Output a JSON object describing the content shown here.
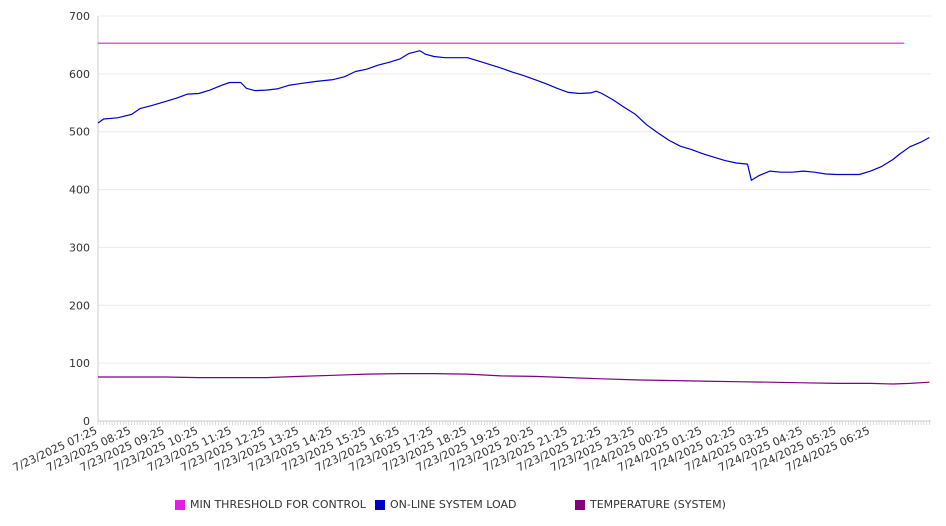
{
  "chart_data": {
    "type": "line",
    "ylim": [
      0,
      700
    ],
    "yticks": [
      0,
      100,
      200,
      300,
      400,
      500,
      600,
      700
    ],
    "grid": true,
    "legend_position": "bottom",
    "x_start": "7/23/2025 07:25",
    "x_end": "7/24/2025 07:25",
    "x_tick_labels": [
      "7/23/2025 07:25",
      "7/23/2025 08:25",
      "7/23/2025 09:25",
      "7/23/2025 10:25",
      "7/23/2025 11:25",
      "7/23/2025 12:25",
      "7/23/2025 13:25",
      "7/23/2025 14:25",
      "7/23/2025 15:25",
      "7/23/2025 16:25",
      "7/23/2025 17:25",
      "7/23/2025 18:25",
      "7/23/2025 19:25",
      "7/23/2025 20:25",
      "7/23/2025 21:25",
      "7/23/2025 22:25",
      "7/23/2025 23:25",
      "7/24/2025 00:25",
      "7/24/2025 01:25",
      "7/24/2025 02:25",
      "7/24/2025 03:25",
      "7/24/2025 04:25",
      "7/24/2025 05:25",
      "7/24/2025 06:25"
    ],
    "series": [
      {
        "name": "MIN THRESHOLD FOR CONTROL",
        "color": "#e41ee4",
        "points": [
          [
            "7/23/2025 07:25",
            653
          ],
          [
            "7/24/2025 07:25",
            653
          ]
        ]
      },
      {
        "name": "ON-LINE SYSTEM LOAD",
        "color": "#0000cc",
        "points": [
          [
            "7/23/2025 07:25",
            515
          ],
          [
            "7/23/2025 07:35",
            522
          ],
          [
            "7/23/2025 08:00",
            524
          ],
          [
            "7/23/2025 08:25",
            530
          ],
          [
            "7/23/2025 08:40",
            540
          ],
          [
            "7/23/2025 09:00",
            545
          ],
          [
            "7/23/2025 09:25",
            552
          ],
          [
            "7/23/2025 09:45",
            558
          ],
          [
            "7/23/2025 10:05",
            565
          ],
          [
            "7/23/2025 10:25",
            566
          ],
          [
            "7/23/2025 10:45",
            572
          ],
          [
            "7/23/2025 11:05",
            580
          ],
          [
            "7/23/2025 11:20",
            585
          ],
          [
            "7/23/2025 11:40",
            585
          ],
          [
            "7/23/2025 11:50",
            575
          ],
          [
            "7/23/2025 12:05",
            571
          ],
          [
            "7/23/2025 12:25",
            572
          ],
          [
            "7/23/2025 12:45",
            574
          ],
          [
            "7/23/2025 13:05",
            580
          ],
          [
            "7/23/2025 13:25",
            583
          ],
          [
            "7/23/2025 13:55",
            587
          ],
          [
            "7/23/2025 14:25",
            590
          ],
          [
            "7/23/2025 14:45",
            595
          ],
          [
            "7/23/2025 15:05",
            604
          ],
          [
            "7/23/2025 15:25",
            608
          ],
          [
            "7/23/2025 15:45",
            615
          ],
          [
            "7/23/2025 16:05",
            620
          ],
          [
            "7/23/2025 16:25",
            626
          ],
          [
            "7/23/2025 16:40",
            635
          ],
          [
            "7/23/2025 17:00",
            640
          ],
          [
            "7/23/2025 17:10",
            634
          ],
          [
            "7/23/2025 17:25",
            630
          ],
          [
            "7/23/2025 17:45",
            628
          ],
          [
            "7/23/2025 18:25",
            628
          ],
          [
            "7/23/2025 18:45",
            622
          ],
          [
            "7/23/2025 19:05",
            616
          ],
          [
            "7/23/2025 19:25",
            610
          ],
          [
            "7/23/2025 19:45",
            603
          ],
          [
            "7/23/2025 20:05",
            597
          ],
          [
            "7/23/2025 20:25",
            590
          ],
          [
            "7/23/2025 20:45",
            583
          ],
          [
            "7/23/2025 21:05",
            575
          ],
          [
            "7/23/2025 21:25",
            568
          ],
          [
            "7/23/2025 21:45",
            566
          ],
          [
            "7/23/2025 22:05",
            567
          ],
          [
            "7/23/2025 22:15",
            570
          ],
          [
            "7/23/2025 22:25",
            566
          ],
          [
            "7/23/2025 22:45",
            555
          ],
          [
            "7/23/2025 23:05",
            542
          ],
          [
            "7/23/2025 23:25",
            530
          ],
          [
            "7/23/2025 23:45",
            512
          ],
          [
            "7/24/2025 00:05",
            498
          ],
          [
            "7/24/2025 00:25",
            485
          ],
          [
            "7/24/2025 00:45",
            475
          ],
          [
            "7/24/2025 01:05",
            469
          ],
          [
            "7/24/2025 01:25",
            462
          ],
          [
            "7/24/2025 01:45",
            456
          ],
          [
            "7/24/2025 02:05",
            450
          ],
          [
            "7/24/2025 02:25",
            446
          ],
          [
            "7/24/2025 02:45",
            444
          ],
          [
            "7/24/2025 02:52",
            416
          ],
          [
            "7/24/2025 03:05",
            424
          ],
          [
            "7/24/2025 03:25",
            432
          ],
          [
            "7/24/2025 03:45",
            430
          ],
          [
            "7/24/2025 04:05",
            430
          ],
          [
            "7/24/2025 04:25",
            432
          ],
          [
            "7/24/2025 04:45",
            430
          ],
          [
            "7/24/2025 05:05",
            427
          ],
          [
            "7/24/2025 05:25",
            426
          ],
          [
            "7/24/2025 05:45",
            426
          ],
          [
            "7/24/2025 06:05",
            426
          ],
          [
            "7/24/2025 06:25",
            432
          ],
          [
            "7/24/2025 06:45",
            440
          ],
          [
            "7/24/2025 07:05",
            452
          ],
          [
            "7/24/2025 07:15",
            460
          ],
          [
            "7/24/2025 07:35",
            474
          ],
          [
            "7/24/2025 07:55",
            482
          ],
          [
            "7/24/2025 08:10",
            490
          ]
        ]
      },
      {
        "name": "TEMPERATURE (SYSTEM)",
        "color": "#800080",
        "points": [
          [
            "7/23/2025 07:25",
            76
          ],
          [
            "7/23/2025 09:25",
            76
          ],
          [
            "7/23/2025 10:25",
            75
          ],
          [
            "7/23/2025 12:25",
            75
          ],
          [
            "7/23/2025 13:25",
            77
          ],
          [
            "7/23/2025 14:25",
            79
          ],
          [
            "7/23/2025 15:25",
            81
          ],
          [
            "7/23/2025 16:25",
            82
          ],
          [
            "7/23/2025 17:25",
            82
          ],
          [
            "7/23/2025 18:25",
            81
          ],
          [
            "7/23/2025 19:25",
            78
          ],
          [
            "7/23/2025 20:25",
            77
          ],
          [
            "7/23/2025 21:25",
            75
          ],
          [
            "7/23/2025 22:25",
            73
          ],
          [
            "7/23/2025 23:25",
            71
          ],
          [
            "7/24/2025 00:25",
            70
          ],
          [
            "7/24/2025 01:25",
            69
          ],
          [
            "7/24/2025 02:25",
            68
          ],
          [
            "7/24/2025 03:25",
            67
          ],
          [
            "7/24/2025 04:25",
            66
          ],
          [
            "7/24/2025 05:25",
            65
          ],
          [
            "7/24/2025 06:25",
            65
          ],
          [
            "7/24/2025 07:05",
            64
          ],
          [
            "7/24/2025 07:35",
            65
          ],
          [
            "7/24/2025 08:10",
            67
          ]
        ]
      }
    ]
  }
}
